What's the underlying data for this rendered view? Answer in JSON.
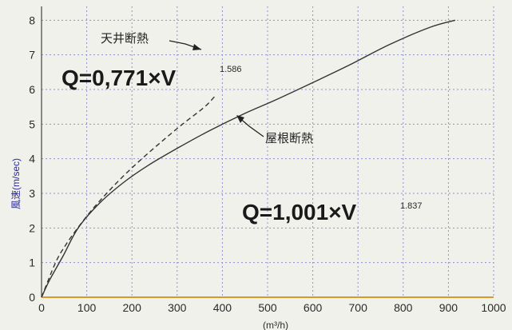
{
  "chart_data": {
    "type": "line",
    "title": "",
    "xlabel": "(m³/h)",
    "ylabel": "風速(m/sec)",
    "xlim": [
      0,
      1000
    ],
    "ylim": [
      0,
      8.4
    ],
    "xticks": [
      "0",
      "100",
      "200",
      "300",
      "400",
      "500",
      "600",
      "700",
      "800",
      "900",
      "1000"
    ],
    "yticks": [
      "0",
      "1",
      "2",
      "3",
      "4",
      "5",
      "6",
      "7",
      "8"
    ],
    "grid": true,
    "series": [
      {
        "name": "天井断熱",
        "style": "dashed",
        "color": "#333333",
        "formula": {
          "base": "Q=0,771×V",
          "exponent": "1.586"
        },
        "x": [
          0,
          31,
          53,
          80,
          110,
          144,
          181,
          222,
          266,
          312,
          361,
          383
        ],
        "y": [
          0,
          1,
          1.5,
          2,
          2.5,
          3,
          3.5,
          4,
          4.5,
          5,
          5.5,
          5.8
        ]
      },
      {
        "name": "屋根断熱",
        "style": "solid",
        "color": "#333333",
        "formula": {
          "base": "Q=1,001×V",
          "exponent": "1.837"
        },
        "x": [
          0,
          18,
          48,
          81,
          127,
          180,
          235,
          300,
          370,
          448,
          518,
          600,
          680,
          770,
          860,
          915
        ],
        "y": [
          0,
          0.5,
          1.2,
          2,
          2.7,
          3.3,
          3.8,
          4.3,
          4.8,
          5.3,
          5.7,
          6.2,
          6.7,
          7.3,
          7.8,
          8
        ]
      }
    ]
  }
}
